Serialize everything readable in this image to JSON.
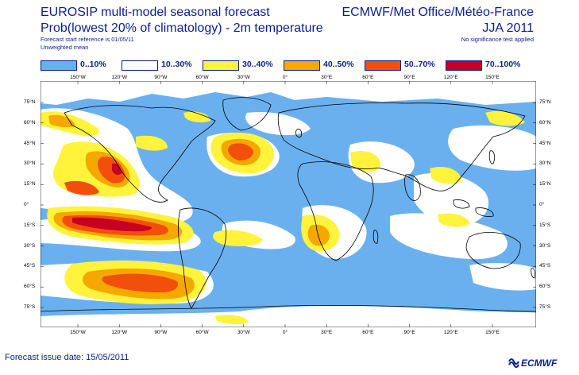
{
  "header": {
    "title_left": "EUROSIP multi-model seasonal forecast",
    "title_right": "ECMWF/Met Office/Météo-France",
    "subtitle_left": "Prob(lowest 20% of climatology) - 2m temperature",
    "subtitle_right": "JJA 2011",
    "line3_left": "Forecast start reference is 01/05/11",
    "line3_right": "No significance test applied",
    "line4_left": "Unweighted mean"
  },
  "legend": [
    {
      "label": "0..10%",
      "color": "#6bb0ee"
    },
    {
      "label": "10..30%",
      "color": "#ffffff"
    },
    {
      "label": "30..40%",
      "color": "#fff33b"
    },
    {
      "label": "40..50%",
      "color": "#f5a800"
    },
    {
      "label": "50..70%",
      "color": "#f24e0c"
    },
    {
      "label": "70..100%",
      "color": "#c70022"
    }
  ],
  "map": {
    "lon_labels_top": [
      "150°W",
      "120°W",
      "90°W",
      "60°W",
      "30°W",
      "0°",
      "30°E",
      "60°E",
      "90°E",
      "120°E",
      "150°E"
    ],
    "lon_labels_bottom": [
      "150°W",
      "120°W",
      "90°W",
      "60°W",
      "30°W",
      "0°",
      "30°E",
      "60°E",
      "90°E",
      "120°E",
      "150°E"
    ],
    "lat_labels_left": [
      "75°N",
      "60°N",
      "45°N",
      "30°N",
      "15°N",
      "0°",
      "15°S",
      "30°S",
      "45°S",
      "60°S",
      "75°S"
    ],
    "lat_labels_right": [
      "75°N",
      "60°N",
      "45°N",
      "30°N",
      "15°N",
      "0°",
      "15°S",
      "30°S",
      "45°S",
      "60°S",
      "75°S"
    ],
    "ocean_color": "#6bb0ee"
  },
  "footer": {
    "issue_date": "Forecast issue date: 15/05/2011",
    "logo_text": "ECMWF"
  }
}
